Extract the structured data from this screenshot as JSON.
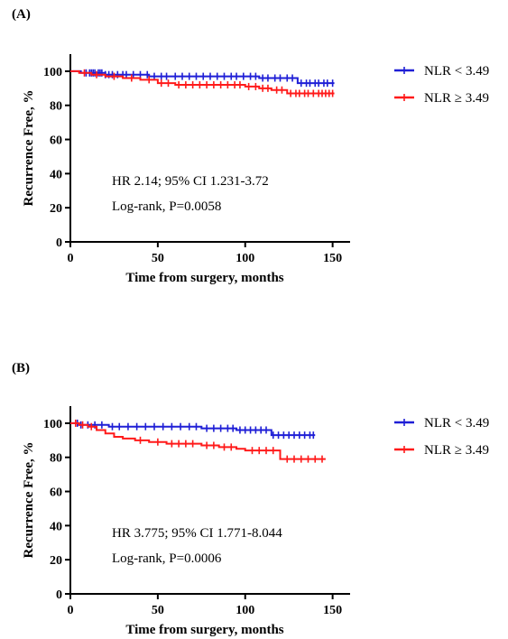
{
  "panels": [
    {
      "label": "(A)"
    },
    {
      "label": "(B)"
    }
  ],
  "colors": {
    "blue": "#1f1fd6",
    "red": "#ff1a1a"
  },
  "chart_data": [
    {
      "type": "line",
      "panel": "(A)",
      "xlabel": "Time from surgery, months",
      "ylabel": "Recurrence Free, %",
      "xlim": [
        0,
        160
      ],
      "ylim": [
        0,
        110
      ],
      "xticks": [
        0,
        50,
        100,
        150
      ],
      "yticks": [
        0,
        20,
        40,
        60,
        80,
        100
      ],
      "grid": false,
      "legend": "right",
      "annotations": [
        "HR 2.14; 95% CI 1.231-3.72",
        "Log-rank, P=0.0058"
      ],
      "series": [
        {
          "name": "NLR < 3.49",
          "color": "#1f1fd6",
          "step": [
            [
              0,
              100
            ],
            [
              6,
              99
            ],
            [
              20,
              98
            ],
            [
              45,
              97
            ],
            [
              108,
              96
            ],
            [
              130,
              93
            ],
            [
              151,
              93
            ]
          ],
          "censor": [
            9,
            11,
            12,
            13,
            14,
            16,
            17,
            18,
            20,
            22,
            24,
            27,
            30,
            32,
            36,
            40,
            44,
            48,
            52,
            55,
            60,
            64,
            68,
            72,
            76,
            80,
            84,
            88,
            92,
            95,
            99,
            103,
            106,
            110,
            113,
            117,
            120,
            124,
            127,
            132,
            135,
            137,
            140,
            142,
            145,
            147,
            150
          ]
        },
        {
          "name": "NLR ≥ 3.49",
          "color": "#ff1a1a",
          "step": [
            [
              0,
              100
            ],
            [
              5,
              99
            ],
            [
              12,
              98
            ],
            [
              20,
              97
            ],
            [
              30,
              96
            ],
            [
              40,
              95
            ],
            [
              50,
              93
            ],
            [
              60,
              92
            ],
            [
              100,
              91
            ],
            [
              108,
              90
            ],
            [
              115,
              89
            ],
            [
              124,
              87
            ],
            [
              151,
              87
            ]
          ],
          "censor": [
            8,
            15,
            25,
            35,
            45,
            52,
            56,
            62,
            66,
            70,
            74,
            78,
            82,
            86,
            90,
            94,
            97,
            102,
            106,
            110,
            113,
            118,
            121,
            126,
            129,
            131,
            134,
            136,
            139,
            142,
            144,
            146,
            148,
            150
          ]
        }
      ]
    },
    {
      "type": "line",
      "panel": "(B)",
      "xlabel": "Time from surgery, months",
      "ylabel": "Recurrence Free, %",
      "xlim": [
        0,
        160
      ],
      "ylim": [
        0,
        110
      ],
      "xticks": [
        0,
        50,
        100,
        150
      ],
      "yticks": [
        0,
        20,
        40,
        60,
        80,
        100
      ],
      "grid": false,
      "legend": "right",
      "annotations": [
        "HR 3.775; 95% CI 1.771-8.044",
        "Log-rank, P=0.0006"
      ],
      "series": [
        {
          "name": "NLR < 3.49",
          "color": "#1f1fd6",
          "step": [
            [
              0,
              100
            ],
            [
              5,
              99
            ],
            [
              22,
              98
            ],
            [
              75,
              97
            ],
            [
              95,
              96
            ],
            [
              115,
              93
            ],
            [
              140,
              93
            ]
          ],
          "censor": [
            4,
            6,
            10,
            14,
            18,
            24,
            28,
            33,
            38,
            43,
            48,
            53,
            58,
            63,
            68,
            72,
            78,
            82,
            86,
            90,
            93,
            97,
            100,
            103,
            106,
            109,
            112,
            116,
            119,
            122,
            125,
            128,
            131,
            134,
            137,
            139
          ]
        },
        {
          "name": "NLR ≥ 3.49",
          "color": "#ff1a1a",
          "step": [
            [
              0,
              100
            ],
            [
              5,
              99
            ],
            [
              10,
              98
            ],
            [
              15,
              96
            ],
            [
              20,
              94
            ],
            [
              25,
              92
            ],
            [
              30,
              91
            ],
            [
              37,
              90
            ],
            [
              45,
              89
            ],
            [
              55,
              88
            ],
            [
              75,
              87
            ],
            [
              85,
              86
            ],
            [
              95,
              85
            ],
            [
              100,
              84
            ],
            [
              120,
              79
            ],
            [
              146,
              79
            ]
          ],
          "censor": [
            3,
            7,
            12,
            40,
            50,
            58,
            62,
            66,
            70,
            78,
            82,
            88,
            92,
            104,
            108,
            112,
            116,
            124,
            128,
            132,
            136,
            140,
            144
          ]
        }
      ]
    }
  ]
}
